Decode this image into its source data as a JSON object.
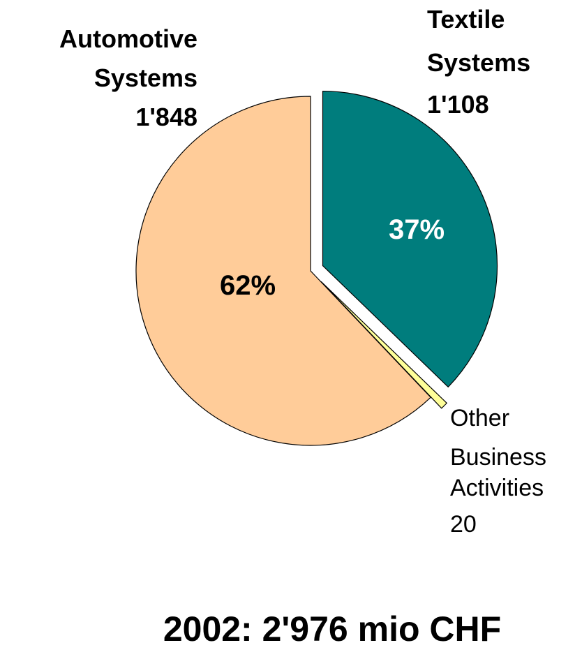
{
  "chart_data": {
    "type": "pie",
    "total_label": "2002: 2'976 mio CHF",
    "slices": [
      {
        "label_lines": [
          "Textile",
          "Systems"
        ],
        "value_text": "1'108",
        "value": 1108,
        "percent_label": "37%",
        "color": "#007D7D",
        "percent_color": "#ffffff"
      },
      {
        "label_lines": [
          "Other",
          "Business",
          "Activities"
        ],
        "value_text": "20",
        "value": 20,
        "percent_label": "",
        "color": "#FFFF99",
        "percent_color": "#000000"
      },
      {
        "label_lines": [
          "Automotive",
          "Systems"
        ],
        "value_text": "1'848",
        "value": 1848,
        "percent_label": "62%",
        "color": "#FFCC99",
        "percent_color": "#000000"
      }
    ]
  }
}
